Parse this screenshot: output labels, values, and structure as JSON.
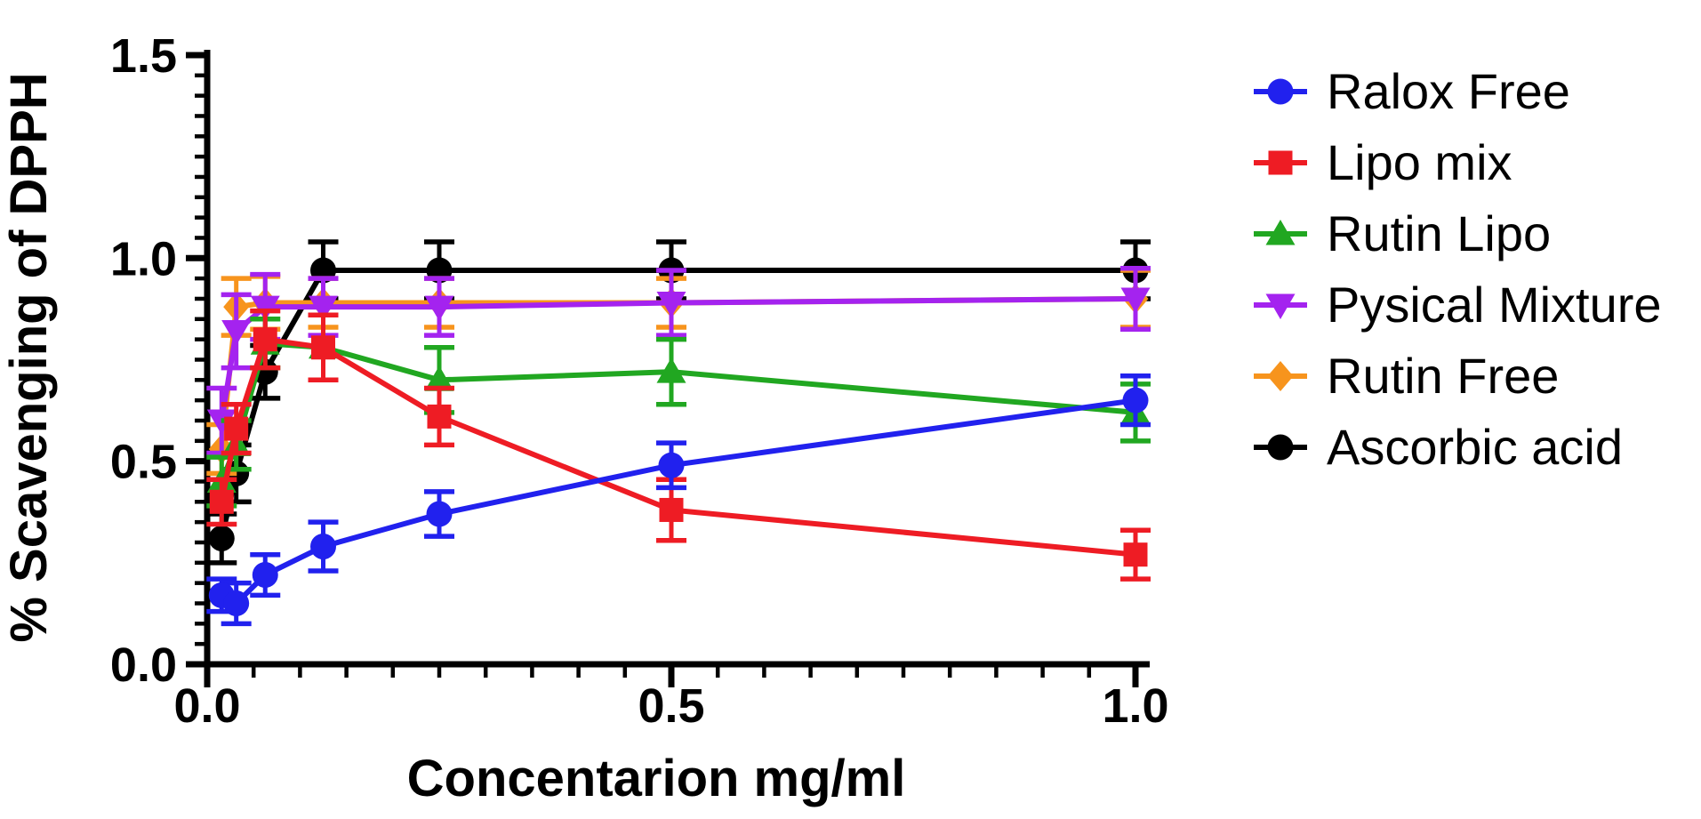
{
  "figure": {
    "background": "#ffffff",
    "axis_color": "#000000"
  },
  "chart_data": {
    "type": "line",
    "title": "",
    "xlabel": "Concentarion mg/ml",
    "ylabel": "% Scavenging of DPPH",
    "x": [
      0.0156,
      0.0313,
      0.0625,
      0.125,
      0.25,
      0.5,
      1.0
    ],
    "xlim": [
      0,
      1.05
    ],
    "ylim": [
      0,
      1.5
    ],
    "x_major_ticks": [
      0.0,
      0.5,
      1.0
    ],
    "x_tick_labels": [
      "0.0",
      "0.5",
      "1.0"
    ],
    "y_major_ticks": [
      0.0,
      0.5,
      1.0,
      1.5
    ],
    "y_tick_labels": [
      "0.0",
      "0.5",
      "1.0",
      "1.5"
    ],
    "minor_tick_step": 0.05,
    "grid": false,
    "legend_position": "right",
    "error_bars": true,
    "series": [
      {
        "name": "Ralox Free",
        "marker": "circle",
        "color": "#2121ee",
        "values": [
          0.17,
          0.15,
          0.22,
          0.29,
          0.37,
          0.49,
          0.65
        ],
        "errors": [
          0.04,
          0.05,
          0.05,
          0.06,
          0.055,
          0.055,
          0.06
        ]
      },
      {
        "name": "Lipo mix",
        "marker": "square",
        "color": "#ee1c24",
        "values": [
          0.4,
          0.58,
          0.8,
          0.78,
          0.61,
          0.38,
          0.27
        ],
        "errors": [
          0.055,
          0.06,
          0.07,
          0.08,
          0.07,
          0.075,
          0.06
        ]
      },
      {
        "name": "Rutin Lipo",
        "marker": "triangle-up",
        "color": "#21a721",
        "values": [
          0.45,
          0.54,
          0.79,
          0.78,
          0.7,
          0.72,
          0.62
        ],
        "errors": [
          0.06,
          0.06,
          0.06,
          0.08,
          0.08,
          0.08,
          0.07
        ]
      },
      {
        "name": "Pysical Mixture",
        "marker": "triangle-down",
        "color": "#a423ef",
        "values": [
          0.6,
          0.82,
          0.88,
          0.88,
          0.88,
          0.89,
          0.9
        ],
        "errors": [
          0.08,
          0.09,
          0.08,
          0.07,
          0.07,
          0.08,
          0.075
        ]
      },
      {
        "name": "Rutin Free",
        "marker": "diamond",
        "color": "#f7941d",
        "values": [
          0.53,
          0.88,
          0.89,
          0.89,
          0.89,
          0.89,
          0.9
        ],
        "errors": [
          0.06,
          0.07,
          0.065,
          0.06,
          0.06,
          0.06,
          0.07
        ]
      },
      {
        "name": "Ascorbic acid",
        "marker": "circle",
        "color": "#000000",
        "values": [
          0.31,
          0.47,
          0.72,
          0.97,
          0.97,
          0.97,
          0.97
        ],
        "errors": [
          0.06,
          0.07,
          0.065,
          0.07,
          0.07,
          0.07,
          0.07
        ]
      }
    ]
  },
  "legend": {
    "entries": [
      "Ralox Free",
      "Lipo mix",
      "Rutin Lipo",
      "Pysical Mixture",
      "Rutin Free",
      "Ascorbic acid"
    ]
  }
}
